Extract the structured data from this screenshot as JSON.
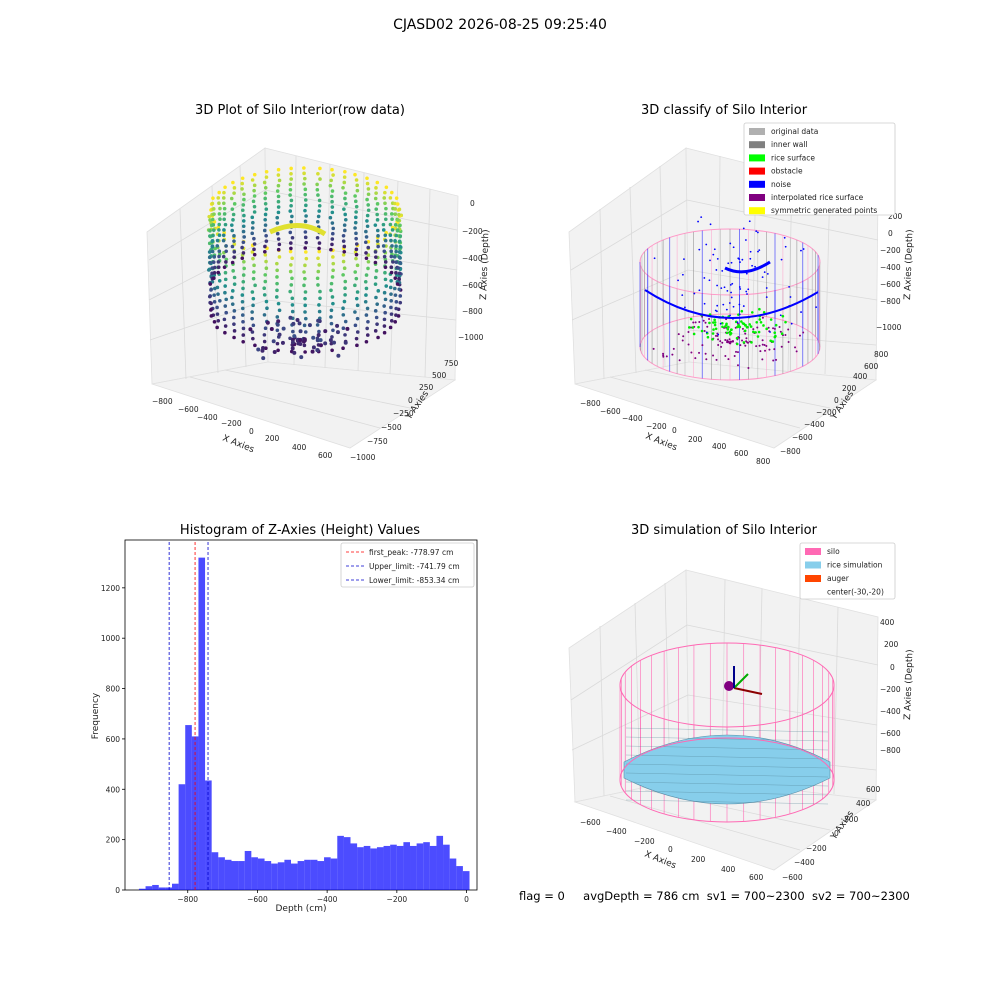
{
  "suptitle": "CJASD02 2026-08-25 09:25:40",
  "footer": {
    "flag": "flag = 0",
    "avg_depth": "avgDepth = 786 cm",
    "sv1": "sv1 = 700~2300",
    "sv2": "sv2 = 700~2300"
  },
  "panel1": {
    "title": "3D Plot of Silo Interior(row data)",
    "xlabel": "X Axies",
    "ylabel": "Y Axies",
    "zlabel": "Z Axies (Depth)",
    "xticks": [
      "−800",
      "−600",
      "−400",
      "−200",
      "0",
      "200",
      "400",
      "600"
    ],
    "yticks": [
      "−1000",
      "−750",
      "−500",
      "−250",
      "0",
      "250",
      "500",
      "750"
    ],
    "zticks": [
      "0",
      "−200",
      "−400",
      "−600",
      "−800",
      "−1000"
    ]
  },
  "panel2": {
    "title": "3D classify of Silo Interior",
    "xlabel": "X Axies",
    "ylabel": "Y Axies",
    "zlabel": "Z Axies (Depth)",
    "xticks": [
      "−800",
      "−600",
      "−400",
      "−200",
      "0",
      "200",
      "400",
      "600",
      "800"
    ],
    "yticks": [
      "−800",
      "−600",
      "−400",
      "−200",
      "0",
      "200",
      "400",
      "600",
      "800"
    ],
    "zticks": [
      "200",
      "0",
      "−200",
      "−400",
      "−600",
      "−800",
      "−1000"
    ],
    "legend": [
      {
        "label": "original data",
        "color": "#b0b0b0"
      },
      {
        "label": "inner wall",
        "color": "#808080"
      },
      {
        "label": "rice surface",
        "color": "#00ff00"
      },
      {
        "label": "obstacle",
        "color": "#ff0000"
      },
      {
        "label": "noise",
        "color": "#0000ff"
      },
      {
        "label": "interpolated rice surface",
        "color": "#800080"
      },
      {
        "label": "symmetric generated points",
        "color": "#ffff00"
      }
    ]
  },
  "panel4": {
    "title": "3D simulation of Silo Interior",
    "xlabel": "X Axies",
    "ylabel": "Y Axies",
    "zlabel": "Z Axies (Depth)",
    "xticks": [
      "−600",
      "−400",
      "−200",
      "0",
      "200",
      "400",
      "600"
    ],
    "yticks": [
      "−600",
      "−400",
      "−200",
      "0",
      "200",
      "400",
      "600"
    ],
    "zticks": [
      "400",
      "200",
      "0",
      "−200",
      "−400",
      "−600",
      "−800"
    ],
    "legend": [
      {
        "label": "silo",
        "color": "#ff69b4"
      },
      {
        "label": "rice simulation",
        "color": "#87ceeb"
      },
      {
        "label": "auger",
        "color": "#ff4500"
      },
      {
        "label": "center(-30,-20)",
        "color": ""
      }
    ]
  },
  "chart_data": {
    "type": "bar",
    "title": "Histogram of Z-Axies (Height) Values",
    "xlabel": "Depth (cm)",
    "ylabel": "Frequency",
    "xlim": [
      -980,
      30
    ],
    "ylim": [
      0,
      1390
    ],
    "xticks": [
      -800,
      -600,
      -400,
      -200,
      0
    ],
    "yticks": [
      0,
      200,
      400,
      600,
      800,
      1000,
      1200
    ],
    "bin_width": 18.97,
    "bin_start": -940,
    "values": [
      5,
      15,
      20,
      10,
      10,
      25,
      420,
      655,
      610,
      1320,
      435,
      150,
      130,
      120,
      115,
      115,
      155,
      130,
      125,
      115,
      105,
      110,
      120,
      105,
      115,
      120,
      120,
      115,
      130,
      125,
      215,
      210,
      185,
      170,
      175,
      165,
      170,
      175,
      180,
      175,
      190,
      175,
      185,
      190,
      175,
      215,
      180,
      125,
      95,
      75
    ],
    "color": "#0000ff",
    "vlines": [
      {
        "label": "first_peak: -778.97 cm",
        "x": -778.97,
        "color": "#ff0000"
      },
      {
        "label": "Upper_limit: -741.79 cm",
        "x": -741.79,
        "color": "#0000cc"
      },
      {
        "label": "Lower_limit: -853.34 cm",
        "x": -853.34,
        "color": "#0000cc"
      }
    ]
  }
}
